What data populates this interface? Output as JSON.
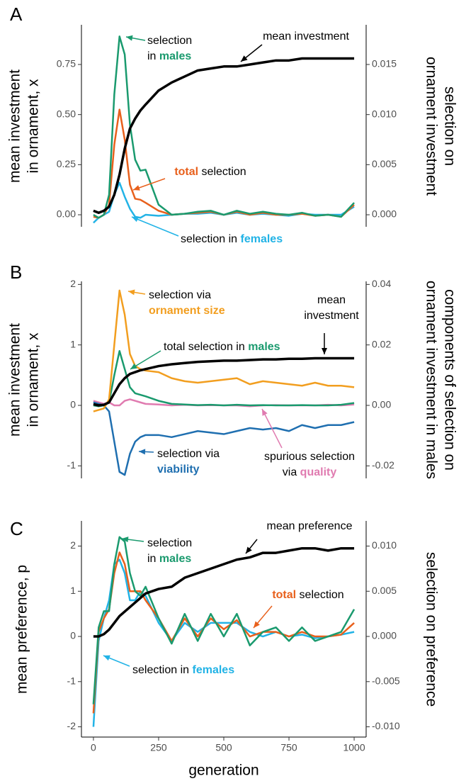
{
  "chart_data": [
    {
      "type": "line",
      "panel": "A",
      "ylabel": [
        "mean investment",
        "in ornament, x"
      ],
      "y2label": [
        "selection on",
        "ornament investment"
      ],
      "x": [
        0,
        20,
        40,
        60,
        80,
        100,
        120,
        140,
        160,
        180,
        200,
        250,
        300,
        350,
        400,
        450,
        500,
        550,
        600,
        650,
        700,
        750,
        800,
        850,
        900,
        950,
        1000
      ],
      "xlim": [
        -46,
        1046
      ],
      "ylim": [
        -0.06,
        0.948
      ],
      "yticks": [
        {
          "value": 0,
          "label": "0.00"
        },
        0.25,
        {
          "value": 0.5,
          "label": "0.50"
        },
        0.75
      ],
      "y2lim": [
        -0.0012,
        0.01896
      ],
      "y2ticks": [
        {
          "value": 0,
          "label": "0.000"
        },
        0.005,
        {
          "value": 0.01,
          "label": "0.010"
        },
        0.015
      ],
      "series": [
        {
          "color": "#000000",
          "values": [
            0.02,
            0.01,
            0.02,
            0.04,
            0.1,
            0.2,
            0.33,
            0.43,
            0.48,
            0.52,
            0.55,
            0.62,
            0.66,
            0.69,
            0.72,
            0.73,
            0.74,
            0.74,
            0.75,
            0.76,
            0.77,
            0.77,
            0.78,
            0.78,
            0.78,
            0.78,
            0.78
          ]
        },
        {
          "color": "#1a9a6e",
          "axis": "y2",
          "values": [
            0.0,
            -0.0003,
            0.0,
            0.002,
            0.012,
            0.0178,
            0.016,
            0.009,
            0.0055,
            0.0044,
            0.0045,
            0.001,
            0.0,
            0.0001,
            0.0003,
            0.0004,
            0.0,
            0.0004,
            0.0001,
            0.0003,
            0.0001,
            0.0,
            0.0002,
            -0.0001,
            0.0,
            -0.0002,
            0.0012
          ]
        },
        {
          "color": "#e8601c",
          "axis": "y2",
          "values": [
            -0.0002,
            -0.0003,
            0.0,
            0.001,
            0.007,
            0.0105,
            0.0075,
            0.003,
            0.0016,
            0.0015,
            0.0012,
            0.0004,
            0.0,
            0.0001,
            0.0002,
            0.0003,
            0.0,
            0.0003,
            0.0,
            0.0002,
            0.0,
            0.0,
            0.0001,
            -0.0001,
            0.0,
            -0.0002,
            0.001
          ]
        },
        {
          "color": "#22b3e6",
          "axis": "y2",
          "values": [
            -0.0008,
            -0.0003,
            0.0,
            0.0003,
            0.002,
            0.0032,
            0.0018,
            0.0006,
            -0.0002,
            -0.0003,
            0.0,
            -0.0001,
            0.0,
            0.0001,
            0.0001,
            0.0002,
            0.0,
            0.0002,
            0.0,
            0.0001,
            0.0,
            -0.0001,
            0.0001,
            0.0,
            0.0,
            0.0,
            0.0008
          ]
        }
      ],
      "annotations": [
        {
          "lines": [
            [
              {
                "text": "selection"
              }
            ],
            [
              {
                "text": "in "
              },
              {
                "text": "males",
                "color": "#1a9a6e",
                "bold": true
              }
            ]
          ]
        },
        {
          "lines": [
            [
              {
                "text": "mean investment"
              }
            ]
          ]
        },
        {
          "lines": [
            [
              {
                "text": "total",
                "color": "#e8601c",
                "bold": true
              },
              {
                "text": " selection"
              }
            ]
          ]
        },
        {
          "lines": [
            [
              {
                "text": "selection in "
              },
              {
                "text": "females",
                "color": "#22b3e6",
                "bold": true
              }
            ]
          ]
        }
      ]
    },
    {
      "type": "line",
      "panel": "B",
      "ylabel": [
        "mean investment",
        "in ornament, x"
      ],
      "y2label": [
        "components of selection on",
        "ornament investment in males"
      ],
      "x": [
        0,
        20,
        40,
        60,
        80,
        100,
        120,
        140,
        160,
        180,
        200,
        250,
        300,
        350,
        400,
        450,
        500,
        550,
        600,
        650,
        700,
        750,
        800,
        850,
        900,
        950,
        1000
      ],
      "xlim": [
        -46,
        1046
      ],
      "ylim": [
        -1.207,
        2.051
      ],
      "yticks": [
        -1,
        0,
        1,
        2
      ],
      "y2lim": [
        -0.02414,
        0.04102
      ],
      "y2ticks": [
        -0.02,
        {
          "value": 0,
          "label": "0.00"
        },
        0.02,
        0.04
      ],
      "series": [
        {
          "color": "#000000",
          "values": [
            0.02,
            0.0,
            0.01,
            0.05,
            0.2,
            0.35,
            0.45,
            0.52,
            0.55,
            0.58,
            0.6,
            0.65,
            0.68,
            0.7,
            0.72,
            0.73,
            0.74,
            0.74,
            0.75,
            0.76,
            0.76,
            0.77,
            0.77,
            0.78,
            0.78,
            0.78,
            0.78
          ]
        },
        {
          "color": "#f29e1f",
          "axis": "y2",
          "values": [
            -0.002,
            -0.0015,
            -0.001,
            0.002,
            0.02,
            0.038,
            0.03,
            0.017,
            0.013,
            0.012,
            0.0115,
            0.011,
            0.009,
            0.008,
            0.0075,
            0.008,
            0.0085,
            0.009,
            0.007,
            0.008,
            0.0075,
            0.007,
            0.0065,
            0.0075,
            0.0065,
            0.0065,
            0.006
          ]
        },
        {
          "color": "#1a9a6e",
          "axis": "y2",
          "values": [
            0.0,
            -0.0003,
            0.0,
            0.001,
            0.01,
            0.018,
            0.012,
            0.006,
            0.004,
            0.0035,
            0.003,
            0.0015,
            0.0005,
            0.0003,
            0.0001,
            0.0002,
            0.0,
            0.0002,
            0.0,
            0.0001,
            0.0,
            0.0,
            0.0001,
            0.0,
            0.0,
            0.0002,
            0.0008
          ]
        },
        {
          "color": "#1f6fb0",
          "axis": "y2",
          "values": [
            0.001,
            0.0005,
            0.0,
            -0.002,
            -0.012,
            -0.022,
            -0.023,
            -0.016,
            -0.012,
            -0.0105,
            -0.0098,
            -0.0098,
            -0.0105,
            -0.0095,
            -0.0085,
            -0.009,
            -0.0095,
            -0.0085,
            -0.0075,
            -0.008,
            -0.0075,
            -0.0085,
            -0.0065,
            -0.0075,
            -0.0065,
            -0.0065,
            -0.0055
          ]
        },
        {
          "color": "#e07bb0",
          "axis": "y2",
          "values": [
            0.0015,
            0.001,
            0.0005,
            0.001,
            0.0,
            0.0,
            0.0015,
            0.002,
            0.0015,
            0.001,
            0.0005,
            0.0003,
            0.0,
            0.0002,
            0.0,
            0.0001,
            0.0,
            0.0,
            -0.0003,
            0.0,
            0.0001,
            0.0,
            0.0,
            0.0,
            0.0002,
            0.0,
            0.0003
          ]
        }
      ],
      "annotations": [
        {
          "lines": [
            [
              {
                "text": "selection via"
              }
            ],
            [
              {
                "text": "ornament size",
                "color": "#f29e1f",
                "bold": true
              }
            ]
          ]
        },
        {
          "lines": [
            [
              {
                "text": "total selection in "
              },
              {
                "text": "males",
                "color": "#1a9a6e",
                "bold": true
              }
            ]
          ]
        },
        {
          "lines": [
            [
              {
                "text": "mean"
              }
            ],
            [
              {
                "text": "investment"
              }
            ]
          ]
        },
        {
          "lines": [
            [
              {
                "text": "selection via"
              }
            ],
            [
              {
                "text": "viability",
                "color": "#1f6fb0",
                "bold": true
              }
            ]
          ]
        },
        {
          "lines": [
            [
              {
                "text": "spurious selection"
              }
            ],
            [
              {
                "text": "via "
              },
              {
                "text": "quality",
                "color": "#e07bb0",
                "bold": true
              }
            ]
          ]
        }
      ]
    },
    {
      "type": "line",
      "panel": "C",
      "ylabel": [
        "mean preference, p"
      ],
      "y2label": [
        "selection on preference"
      ],
      "xlabel": "generation",
      "x": [
        0,
        20,
        40,
        60,
        80,
        100,
        120,
        140,
        160,
        180,
        200,
        250,
        300,
        350,
        400,
        450,
        500,
        550,
        600,
        650,
        700,
        750,
        800,
        850,
        900,
        950,
        1000
      ],
      "xlim": [
        -46,
        1046
      ],
      "xticks": [
        0,
        250,
        500,
        750,
        1000
      ],
      "ylim": [
        -2.227,
        2.557
      ],
      "yticks": [
        -2,
        -1,
        0,
        1,
        2
      ],
      "y2lim": [
        -0.011135,
        0.012785
      ],
      "y2ticks": [
        {
          "value": -0.01,
          "label": "-0.010"
        },
        -0.005,
        {
          "value": 0,
          "label": "0.000"
        },
        0.005,
        {
          "value": 0.01,
          "label": "0.010"
        }
      ],
      "series": [
        {
          "color": "#000000",
          "values": [
            0.0,
            0.0,
            0.05,
            0.15,
            0.3,
            0.45,
            0.55,
            0.65,
            0.75,
            0.85,
            0.95,
            1.05,
            1.1,
            1.3,
            1.4,
            1.5,
            1.6,
            1.7,
            1.75,
            1.85,
            1.85,
            1.9,
            1.95,
            1.95,
            1.9,
            1.95,
            1.95
          ]
        },
        {
          "color": "#1a9a6e",
          "axis": "y2",
          "values": [
            -0.0075,
            0.001,
            0.0028,
            0.0028,
            0.008,
            0.011,
            0.0105,
            0.007,
            0.005,
            0.0045,
            0.0055,
            0.002,
            -0.0008,
            0.0025,
            -0.0005,
            0.0025,
            0.0,
            0.0025,
            -0.001,
            0.0005,
            0.001,
            -0.0005,
            0.001,
            -0.0005,
            0.0,
            0.0005,
            0.003
          ]
        },
        {
          "color": "#e8601c",
          "axis": "y2",
          "values": [
            -0.0085,
            0.0005,
            0.002,
            0.003,
            0.007,
            0.0093,
            0.008,
            0.005,
            0.005,
            0.005,
            0.004,
            0.002,
            -0.0005,
            0.002,
            0.0,
            0.002,
            0.0008,
            0.0018,
            0.0,
            0.0005,
            0.0005,
            0.0,
            0.0005,
            0.0,
            0.0,
            0.0002,
            0.0015
          ]
        },
        {
          "color": "#22b3e6",
          "axis": "y2",
          "values": [
            -0.01,
            -0.0005,
            0.002,
            0.004,
            0.008,
            0.0085,
            0.007,
            0.004,
            0.004,
            0.005,
            0.0045,
            0.0015,
            -0.0005,
            0.0015,
            0.0005,
            0.0015,
            0.0015,
            0.0015,
            0.0005,
            0.0,
            0.0005,
            0.0,
            0.0002,
            -0.0002,
            0.0,
            0.0002,
            0.0005
          ]
        }
      ],
      "annotations": [
        {
          "lines": [
            [
              {
                "text": "mean preference"
              }
            ]
          ]
        },
        {
          "lines": [
            [
              {
                "text": "selection"
              }
            ],
            [
              {
                "text": "in "
              },
              {
                "text": "males",
                "color": "#1a9a6e",
                "bold": true
              }
            ]
          ]
        },
        {
          "lines": [
            [
              {
                "text": "total",
                "color": "#e8601c",
                "bold": true
              },
              {
                "text": " selection"
              }
            ]
          ]
        },
        {
          "lines": [
            [
              {
                "text": "selection in "
              },
              {
                "text": "females",
                "color": "#22b3e6",
                "bold": true
              }
            ]
          ]
        }
      ]
    }
  ]
}
